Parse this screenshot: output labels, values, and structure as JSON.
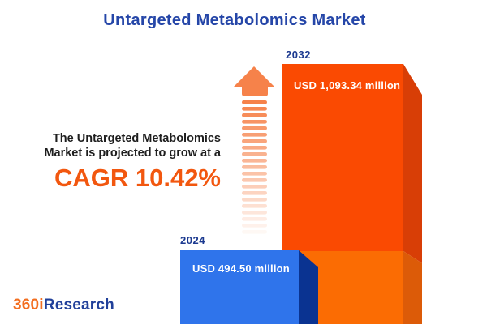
{
  "title": "Untargeted Metabolomics Market",
  "promo": {
    "line1": "The Untargeted Metabolomics",
    "line2": "Market is projected to grow at a",
    "cagr": "CAGR 10.42%"
  },
  "bars": [
    {
      "year": "2024",
      "value_label": "USD 494.50 million"
    },
    {
      "year": "2032",
      "value_label": "USD 1,093.34 million"
    }
  ],
  "logo": {
    "part1": "360i",
    "part2": "Research"
  },
  "colors": {
    "background": "#FFFFFF",
    "title_blue": "#2546A8",
    "year_label_blue": "#1C3A90",
    "body_text": "#1E1E1E",
    "cagr_orange": "#F2570F",
    "bar2024_face": "#2F74EB",
    "bar2024_side": "#0A3391",
    "bar2032_face_top": "#FA4A02",
    "bar2032_face_bottom": "#FB6C03",
    "bar2032_side_top": "#D83E06",
    "bar2032_side_bottom": "#DC5B08",
    "arrow": "#F6824A",
    "value_text": "#FFFFFF",
    "logo_orange": "#F36F21",
    "logo_blue": "#21409A"
  },
  "chart_data": {
    "type": "bar",
    "title": "Untargeted Metabolomics Market",
    "categories": [
      "2024",
      "2032"
    ],
    "values": [
      494.5,
      1093.34
    ],
    "value_labels": [
      "USD 494.50 million",
      "USD 1,093.34 million"
    ],
    "unit": "USD million",
    "bar_colors": [
      "#2F74EB",
      "#FA4A02"
    ],
    "annotations": [
      "The Untargeted Metabolomics Market is projected to grow at a CAGR 10.42%"
    ],
    "legend_position": "none",
    "grid": false,
    "style": "3d-pseudo-perspective, bars anchored to bottom edge"
  }
}
